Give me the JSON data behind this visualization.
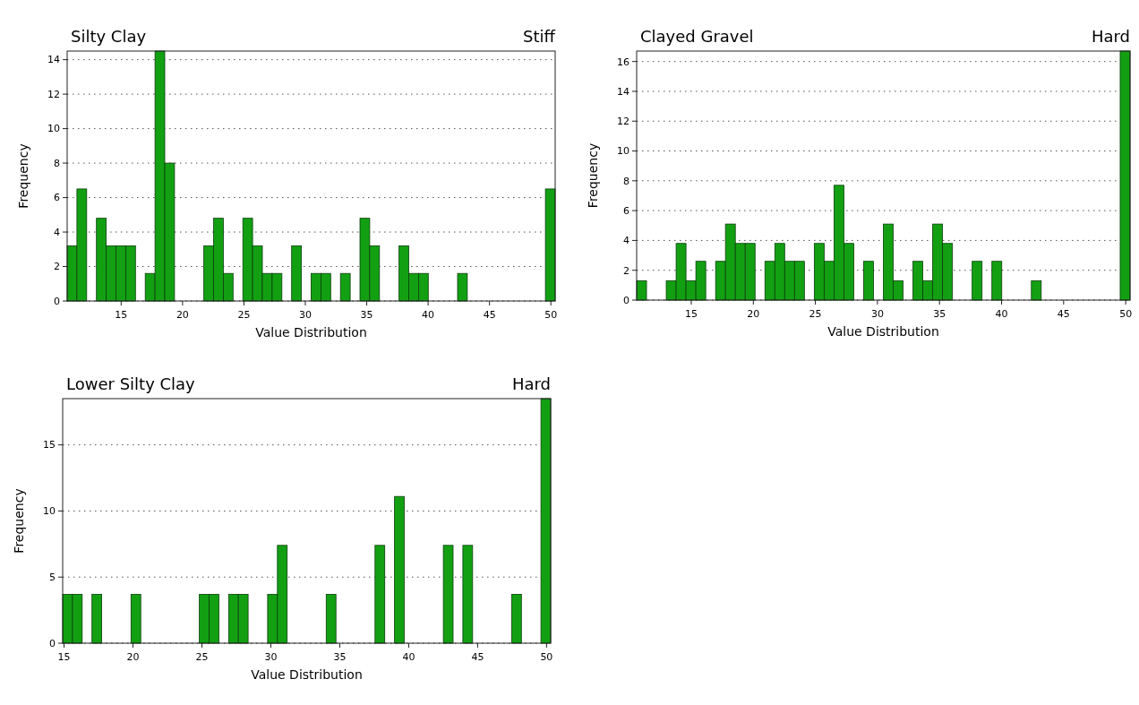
{
  "chart_data": [
    {
      "type": "histogram",
      "title": "Silty Clay",
      "subtitle": "Stiff",
      "xlabel": "Value Distribution",
      "ylabel": "Frequency",
      "color": "#12a012",
      "bins": [
        10.6,
        11.395,
        12.19,
        12.985,
        13.78,
        14.575,
        15.37,
        16.165,
        16.96,
        17.755,
        18.55,
        19.345,
        20.14,
        20.935,
        21.73,
        22.525,
        23.32,
        24.115,
        24.91,
        25.705,
        26.5,
        27.295,
        28.09,
        28.885,
        29.68,
        30.475,
        31.27,
        32.065,
        32.86,
        33.655,
        34.45,
        35.245,
        36.04,
        36.835,
        37.63,
        38.425,
        39.22,
        40.015,
        40.81,
        41.605,
        42.4,
        43.195,
        43.99,
        44.785,
        45.58,
        46.375,
        47.17,
        47.965,
        48.76,
        49.555,
        50.35
      ],
      "values": [
        3.2,
        6.5,
        0,
        4.8,
        3.2,
        3.2,
        3.2,
        0,
        1.6,
        14.5,
        8.0,
        0,
        0,
        0,
        3.2,
        4.8,
        1.6,
        0,
        4.8,
        3.2,
        1.6,
        1.6,
        0,
        3.2,
        0,
        1.6,
        1.6,
        0,
        1.6,
        0,
        4.8,
        3.2,
        0,
        0,
        3.2,
        1.6,
        1.6,
        0,
        0,
        0,
        1.6,
        0,
        0,
        0,
        0,
        0,
        0,
        0,
        0,
        6.5
      ],
      "xlim": [
        10.6,
        50.35
      ],
      "xticks": [
        15,
        20,
        25,
        30,
        35,
        40,
        45,
        50
      ],
      "ylim": [
        0,
        14.5
      ],
      "yticks": [
        0,
        2,
        4,
        6,
        8,
        10,
        12,
        14
      ],
      "grid": "y"
    },
    {
      "type": "histogram",
      "title": "Clayed Gravel",
      "subtitle": "Hard",
      "xlabel": "Value Distribution",
      "ylabel": "Frequency",
      "color": "#12a012",
      "bins": [
        10.6,
        11.395,
        12.19,
        12.985,
        13.78,
        14.575,
        15.37,
        16.165,
        16.96,
        17.755,
        18.55,
        19.345,
        20.14,
        20.935,
        21.73,
        22.525,
        23.32,
        24.115,
        24.91,
        25.705,
        26.5,
        27.295,
        28.09,
        28.885,
        29.68,
        30.475,
        31.27,
        32.065,
        32.86,
        33.655,
        34.45,
        35.245,
        36.04,
        36.835,
        37.63,
        38.425,
        39.22,
        40.015,
        40.81,
        41.605,
        42.4,
        43.195,
        43.99,
        44.785,
        45.58,
        46.375,
        47.17,
        47.965,
        48.76,
        49.555,
        50.35
      ],
      "values": [
        1.3,
        0,
        0,
        1.3,
        3.8,
        1.3,
        2.6,
        0,
        2.6,
        5.1,
        3.8,
        3.8,
        0,
        2.6,
        3.8,
        2.6,
        2.6,
        0,
        3.8,
        2.6,
        7.7,
        3.8,
        0,
        2.6,
        0,
        5.1,
        1.3,
        0,
        2.6,
        1.3,
        5.1,
        3.8,
        0,
        0,
        2.6,
        0,
        2.6,
        0,
        0,
        0,
        1.3,
        0,
        0,
        0,
        0,
        0,
        0,
        0,
        0,
        16.7
      ],
      "xlim": [
        10.6,
        50.35
      ],
      "xticks": [
        15,
        20,
        25,
        30,
        35,
        40,
        45,
        50
      ],
      "ylim": [
        0,
        16.7
      ],
      "yticks": [
        0,
        2,
        4,
        6,
        8,
        10,
        12,
        14,
        16
      ],
      "grid": "y"
    },
    {
      "type": "histogram",
      "title": "Lower Silty Clay",
      "subtitle": "Hard",
      "xlabel": "Value Distribution",
      "ylabel": "Frequency",
      "color": "#12a012",
      "bins": [
        14.9,
        15.608,
        16.316,
        17.024,
        17.732,
        18.44,
        19.148,
        19.856,
        20.564,
        21.272,
        21.98,
        22.688,
        23.396,
        24.104,
        24.812,
        25.52,
        26.228,
        26.936,
        27.644,
        28.352,
        29.06,
        29.768,
        30.476,
        31.184,
        31.892,
        32.6,
        33.308,
        34.016,
        34.724,
        35.432,
        36.14,
        36.848,
        37.556,
        38.264,
        38.972,
        39.68,
        40.388,
        41.096,
        41.804,
        42.512,
        43.22,
        43.928,
        44.636,
        45.344,
        46.052,
        46.76,
        47.468,
        48.176,
        48.884,
        49.592,
        50.3
      ],
      "values": [
        3.7,
        3.7,
        0,
        3.7,
        0,
        0,
        0,
        3.7,
        0,
        0,
        0,
        0,
        0,
        0,
        3.7,
        3.7,
        0,
        3.7,
        3.7,
        0,
        0,
        3.7,
        7.4,
        0,
        0,
        0,
        0,
        3.7,
        0,
        0,
        0,
        0,
        7.4,
        0,
        11.1,
        0,
        0,
        0,
        0,
        7.4,
        0,
        7.4,
        0,
        0,
        0,
        0,
        3.7,
        0,
        0,
        18.5
      ],
      "xlim": [
        14.9,
        50.3
      ],
      "xticks": [
        15,
        20,
        25,
        30,
        35,
        40,
        45,
        50
      ],
      "ylim": [
        0,
        18.5
      ],
      "yticks": [
        0,
        5,
        10,
        15
      ],
      "grid": "y"
    }
  ]
}
